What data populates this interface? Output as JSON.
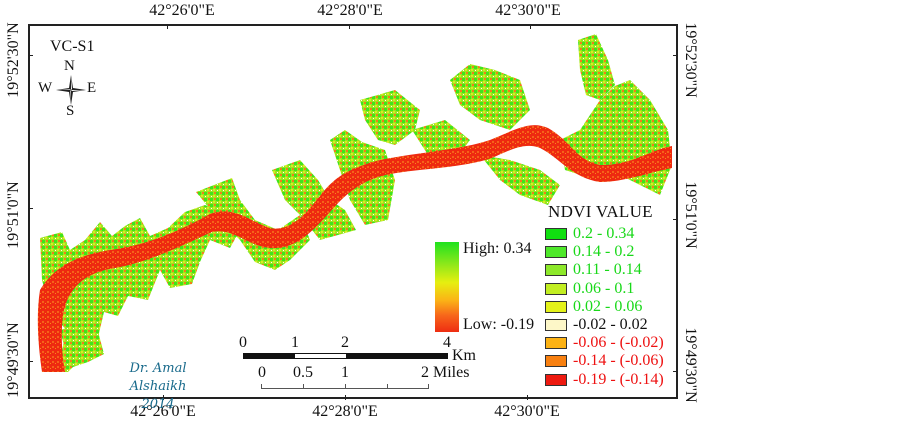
{
  "map": {
    "id_label": "VC-S1",
    "index_name": "NDVI",
    "colors": {
      "river_core": "#ee2a10",
      "river_edge": "#f5621a",
      "vegetation_high": "#2ee81c",
      "vegetation_mid": "#9be51e",
      "frame": "#222222"
    }
  },
  "graticule": {
    "top": [
      "42°26'0\"E",
      "42°28'0\"E",
      "42°30'0\"E"
    ],
    "bottom": [
      "42°26'0\"E",
      "42°28'0\"E",
      "42°30'0\"E"
    ],
    "left": [
      "19°52'30\"N",
      "19°51'0\"N",
      "19°49'30\"N"
    ],
    "right": [
      "19°52'30\"N",
      "19°51'0\"N",
      "19°49'30\"N"
    ]
  },
  "compass": {
    "icon": "compass-rose-icon",
    "north": "N",
    "south": "S",
    "east": "E",
    "west": "W"
  },
  "gradient_legend": {
    "high_label": "High: 0.34",
    "low_label": "Low: -0.19",
    "high_value": 0.34,
    "low_value": -0.19
  },
  "class_legend": {
    "title": "NDVI VALUE",
    "items": [
      {
        "label": "0.2 - 0.34",
        "swatch": "#10e010",
        "text_color": "#18d818"
      },
      {
        "label": "0.14 - 0.2",
        "swatch": "#4ee82a",
        "text_color": "#18d818"
      },
      {
        "label": "0.11 - 0.14",
        "swatch": "#8de82a",
        "text_color": "#18d818"
      },
      {
        "label": "0.06 - 0.1",
        "swatch": "#c2ee22",
        "text_color": "#18d818"
      },
      {
        "label": "0.02 - 0.06",
        "swatch": "#e4f21a",
        "text_color": "#18d818"
      },
      {
        "label": "-0.02 - 0.02",
        "swatch": "#fdf7c8",
        "text_color": "#111111"
      },
      {
        "label": "-0.06 - (-0.02)",
        "swatch": "#fcb214",
        "text_color": "#ee1111"
      },
      {
        "label": "-0.14 - (-0.06)",
        "swatch": "#f88010",
        "text_color": "#ee1111"
      },
      {
        "label": "-0.19 - (-0.14)",
        "swatch": "#ee1a10",
        "text_color": "#ee1111"
      }
    ]
  },
  "scale_bar": {
    "km_labels": [
      "0",
      "1",
      "2",
      "4"
    ],
    "km_unit": "Km",
    "mile_labels": [
      "0",
      "0.5",
      "1",
      "2"
    ],
    "mile_unit": "Miles"
  },
  "signature": {
    "author": "Dr. Amal Alshaikh",
    "year": "2014"
  }
}
